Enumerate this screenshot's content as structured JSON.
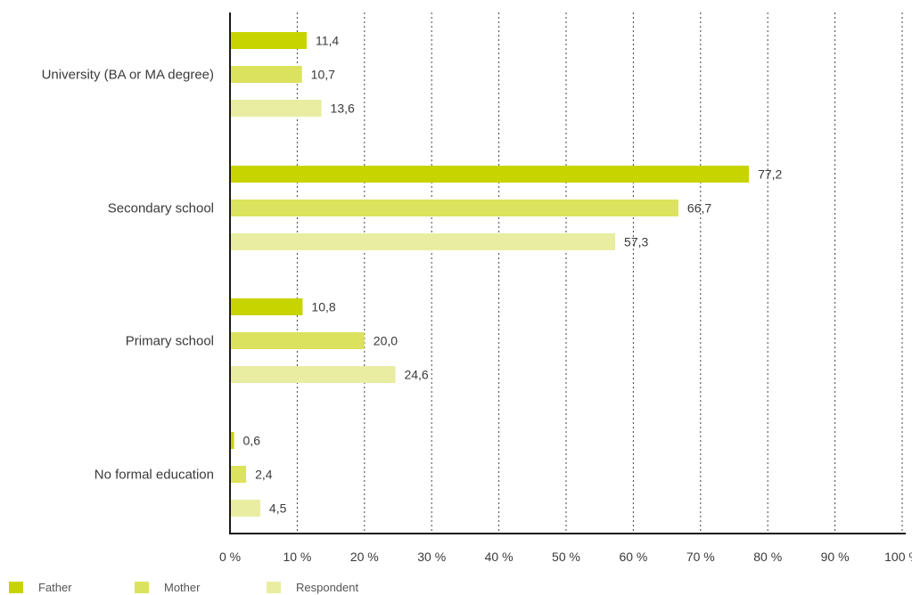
{
  "chart_data": {
    "type": "bar",
    "orientation": "horizontal",
    "categories": [
      "University (BA or MA degree)",
      "Secondary school",
      "Primary school",
      "No formal education"
    ],
    "series": [
      {
        "name": "Father",
        "color": "#c8d400",
        "values": [
          11.4,
          77.2,
          10.8,
          0.6
        ],
        "labels": [
          "11,4",
          "77,2",
          "10,8",
          "0,6"
        ]
      },
      {
        "name": "Mother",
        "color": "#dbe25e",
        "values": [
          10.7,
          66.7,
          20.0,
          2.4
        ],
        "labels": [
          "10,7",
          "66,7",
          "20,0",
          "2,4"
        ]
      },
      {
        "name": "Respondent",
        "color": "#e9eda2",
        "values": [
          13.6,
          57.3,
          24.6,
          4.5
        ],
        "labels": [
          "13,6",
          "57,3",
          "24,6",
          "4,5"
        ]
      }
    ],
    "xlim": [
      0,
      100
    ],
    "xticks": [
      "0 %",
      "10 %",
      "20 %",
      "30 %",
      "40 %",
      "50 %",
      "60 %",
      "70 %",
      "80 %",
      "90 %",
      "100 %"
    ],
    "grid": "vertical dotted",
    "legend_position": "bottom-left"
  }
}
